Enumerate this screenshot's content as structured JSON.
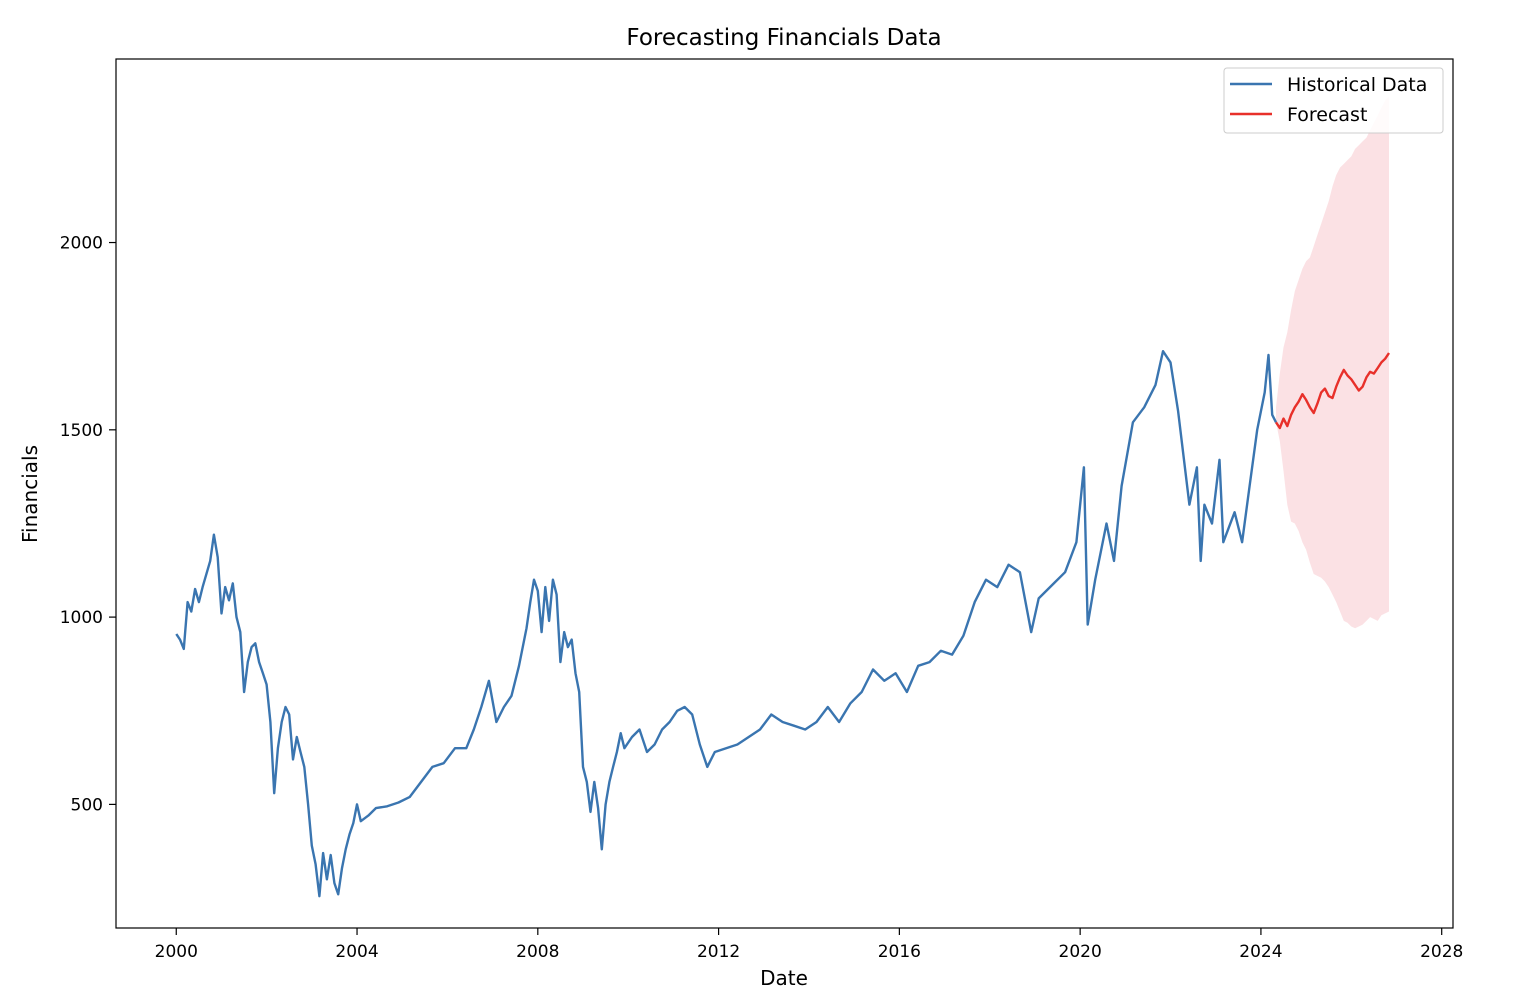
{
  "chart_data": {
    "type": "line",
    "title": "Forecasting Financials Data",
    "xlabel": "Date",
    "ylabel": "Financials",
    "xlim": [
      "1998-09",
      "2028-04"
    ],
    "ylim": [
      170,
      2490
    ],
    "x_ticks": [
      2000,
      2004,
      2008,
      2012,
      2016,
      2020,
      2024,
      2028
    ],
    "y_ticks": [
      500,
      1000,
      1500,
      2000
    ],
    "grid": false,
    "legend": {
      "position": "top-right",
      "entries": [
        "Historical Data",
        "Forecast"
      ]
    },
    "series": [
      {
        "name": "Historical Data",
        "color": "#3a75b0",
        "points": [
          [
            "2000-01",
            955
          ],
          [
            "2000-02",
            940
          ],
          [
            "2000-03",
            915
          ],
          [
            "2000-04",
            1040
          ],
          [
            "2000-05",
            1015
          ],
          [
            "2000-06",
            1075
          ],
          [
            "2000-07",
            1040
          ],
          [
            "2000-08",
            1080
          ],
          [
            "2000-10",
            1150
          ],
          [
            "2000-11",
            1220
          ],
          [
            "2000-12",
            1160
          ],
          [
            "2001-01",
            1010
          ],
          [
            "2001-02",
            1080
          ],
          [
            "2001-03",
            1045
          ],
          [
            "2001-04",
            1090
          ],
          [
            "2001-05",
            1000
          ],
          [
            "2001-06",
            960
          ],
          [
            "2001-07",
            800
          ],
          [
            "2001-08",
            880
          ],
          [
            "2001-09",
            920
          ],
          [
            "2001-10",
            930
          ],
          [
            "2001-11",
            880
          ],
          [
            "2001-12",
            850
          ],
          [
            "2002-01",
            820
          ],
          [
            "2002-02",
            720
          ],
          [
            "2002-03",
            530
          ],
          [
            "2002-04",
            650
          ],
          [
            "2002-05",
            720
          ],
          [
            "2002-06",
            760
          ],
          [
            "2002-07",
            740
          ],
          [
            "2002-08",
            620
          ],
          [
            "2002-09",
            680
          ],
          [
            "2002-10",
            640
          ],
          [
            "2002-11",
            600
          ],
          [
            "2002-12",
            500
          ],
          [
            "2003-01",
            390
          ],
          [
            "2003-02",
            340
          ],
          [
            "2003-03",
            255
          ],
          [
            "2003-04",
            370
          ],
          [
            "2003-05",
            300
          ],
          [
            "2003-06",
            365
          ],
          [
            "2003-07",
            290
          ],
          [
            "2003-08",
            260
          ],
          [
            "2003-09",
            330
          ],
          [
            "2003-10",
            380
          ],
          [
            "2003-11",
            420
          ],
          [
            "2003-12",
            450
          ],
          [
            "2004-01",
            500
          ],
          [
            "2004-02",
            455
          ],
          [
            "2004-04",
            470
          ],
          [
            "2004-06",
            490
          ],
          [
            "2004-09",
            495
          ],
          [
            "2004-12",
            505
          ],
          [
            "2005-03",
            520
          ],
          [
            "2005-06",
            560
          ],
          [
            "2005-09",
            600
          ],
          [
            "2005-12",
            610
          ],
          [
            "2006-03",
            650
          ],
          [
            "2006-06",
            650
          ],
          [
            "2006-08",
            700
          ],
          [
            "2006-10",
            760
          ],
          [
            "2006-12",
            830
          ],
          [
            "2007-02",
            720
          ],
          [
            "2007-04",
            760
          ],
          [
            "2007-06",
            790
          ],
          [
            "2007-08",
            870
          ],
          [
            "2007-10",
            970
          ],
          [
            "2007-11",
            1040
          ],
          [
            "2007-12",
            1100
          ],
          [
            "2008-01",
            1070
          ],
          [
            "2008-02",
            960
          ],
          [
            "2008-03",
            1080
          ],
          [
            "2008-04",
            990
          ],
          [
            "2008-05",
            1100
          ],
          [
            "2008-06",
            1060
          ],
          [
            "2008-07",
            880
          ],
          [
            "2008-08",
            960
          ],
          [
            "2008-09",
            920
          ],
          [
            "2008-10",
            940
          ],
          [
            "2008-11",
            850
          ],
          [
            "2008-12",
            800
          ],
          [
            "2009-01",
            600
          ],
          [
            "2009-02",
            560
          ],
          [
            "2009-03",
            480
          ],
          [
            "2009-04",
            560
          ],
          [
            "2009-05",
            490
          ],
          [
            "2009-06",
            380
          ],
          [
            "2009-07",
            500
          ],
          [
            "2009-08",
            560
          ],
          [
            "2009-09",
            600
          ],
          [
            "2009-10",
            640
          ],
          [
            "2009-11",
            690
          ],
          [
            "2009-12",
            650
          ],
          [
            "2010-02",
            680
          ],
          [
            "2010-04",
            700
          ],
          [
            "2010-06",
            640
          ],
          [
            "2010-08",
            660
          ],
          [
            "2010-10",
            700
          ],
          [
            "2010-12",
            720
          ],
          [
            "2011-02",
            750
          ],
          [
            "2011-04",
            760
          ],
          [
            "2011-06",
            740
          ],
          [
            "2011-08",
            660
          ],
          [
            "2011-10",
            600
          ],
          [
            "2011-12",
            640
          ],
          [
            "2012-03",
            650
          ],
          [
            "2012-06",
            660
          ],
          [
            "2012-09",
            680
          ],
          [
            "2012-12",
            700
          ],
          [
            "2013-03",
            740
          ],
          [
            "2013-06",
            720
          ],
          [
            "2013-09",
            710
          ],
          [
            "2013-12",
            700
          ],
          [
            "2014-03",
            720
          ],
          [
            "2014-06",
            760
          ],
          [
            "2014-09",
            720
          ],
          [
            "2014-12",
            770
          ],
          [
            "2015-03",
            800
          ],
          [
            "2015-06",
            860
          ],
          [
            "2015-09",
            830
          ],
          [
            "2015-12",
            850
          ],
          [
            "2016-03",
            800
          ],
          [
            "2016-06",
            870
          ],
          [
            "2016-09",
            880
          ],
          [
            "2016-12",
            910
          ],
          [
            "2017-03",
            900
          ],
          [
            "2017-06",
            950
          ],
          [
            "2017-09",
            1040
          ],
          [
            "2017-12",
            1100
          ],
          [
            "2018-03",
            1080
          ],
          [
            "2018-06",
            1140
          ],
          [
            "2018-09",
            1120
          ],
          [
            "2018-12",
            960
          ],
          [
            "2019-02",
            1050
          ],
          [
            "2019-06",
            1090
          ],
          [
            "2019-09",
            1120
          ],
          [
            "2019-12",
            1200
          ],
          [
            "2020-02",
            1400
          ],
          [
            "2020-03",
            980
          ],
          [
            "2020-05",
            1100
          ],
          [
            "2020-08",
            1250
          ],
          [
            "2020-10",
            1150
          ],
          [
            "2020-12",
            1350
          ],
          [
            "2021-03",
            1520
          ],
          [
            "2021-06",
            1560
          ],
          [
            "2021-09",
            1620
          ],
          [
            "2021-11",
            1710
          ],
          [
            "2022-01",
            1680
          ],
          [
            "2022-03",
            1550
          ],
          [
            "2022-06",
            1300
          ],
          [
            "2022-08",
            1400
          ],
          [
            "2022-09",
            1150
          ],
          [
            "2022-10",
            1300
          ],
          [
            "2022-12",
            1250
          ],
          [
            "2023-02",
            1420
          ],
          [
            "2023-03",
            1200
          ],
          [
            "2023-06",
            1280
          ],
          [
            "2023-08",
            1200
          ],
          [
            "2023-10",
            1350
          ],
          [
            "2023-12",
            1500
          ],
          [
            "2024-02",
            1600
          ],
          [
            "2024-03",
            1700
          ],
          [
            "2024-04",
            1540
          ],
          [
            "2024-05",
            1520
          ]
        ]
      },
      {
        "name": "Forecast",
        "color": "#e8302a",
        "points": [
          [
            "2024-05",
            1520
          ],
          [
            "2024-06",
            1505
          ],
          [
            "2024-07",
            1530
          ],
          [
            "2024-08",
            1510
          ],
          [
            "2024-09",
            1540
          ],
          [
            "2024-10",
            1560
          ],
          [
            "2024-11",
            1575
          ],
          [
            "2024-12",
            1595
          ],
          [
            "2025-01",
            1580
          ],
          [
            "2025-02",
            1560
          ],
          [
            "2025-03",
            1545
          ],
          [
            "2025-04",
            1570
          ],
          [
            "2025-05",
            1600
          ],
          [
            "2025-06",
            1610
          ],
          [
            "2025-07",
            1590
          ],
          [
            "2025-08",
            1585
          ],
          [
            "2025-09",
            1615
          ],
          [
            "2025-10",
            1640
          ],
          [
            "2025-11",
            1660
          ],
          [
            "2025-12",
            1645
          ],
          [
            "2026-01",
            1635
          ],
          [
            "2026-02",
            1620
          ],
          [
            "2026-03",
            1605
          ],
          [
            "2026-04",
            1615
          ],
          [
            "2026-05",
            1640
          ],
          [
            "2026-06",
            1655
          ],
          [
            "2026-07",
            1650
          ],
          [
            "2026-08",
            1665
          ],
          [
            "2026-09",
            1680
          ],
          [
            "2026-10",
            1690
          ],
          [
            "2026-11",
            1705
          ]
        ],
        "interval_lower": [
          1520,
          1470,
          1390,
          1300,
          1255,
          1250,
          1230,
          1200,
          1180,
          1145,
          1115,
          1110,
          1105,
          1095,
          1080,
          1060,
          1040,
          1015,
          990,
          985,
          975,
          970,
          975,
          980,
          990,
          1000,
          995,
          990,
          1005,
          1010,
          1015
        ],
        "interval_upper": [
          1560,
          1650,
          1720,
          1760,
          1820,
          1870,
          1900,
          1930,
          1950,
          1960,
          1990,
          2020,
          2050,
          2080,
          2110,
          2150,
          2180,
          2200,
          2210,
          2220,
          2230,
          2250,
          2260,
          2270,
          2280,
          2300,
          2320,
          2340,
          2360,
          2380,
          2390
        ],
        "interval_color": "#fadadd"
      }
    ]
  }
}
